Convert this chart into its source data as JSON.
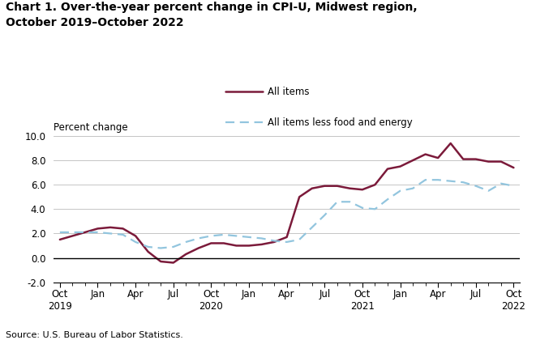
{
  "title": "Chart 1. Over-the-year percent change in CPI-U, Midwest region,\nOctober 2019–October 2022",
  "ylabel": "Percent change",
  "source": "Source: U.S. Bureau of Labor Statistics.",
  "ylim": [
    -2.0,
    10.0
  ],
  "yticks": [
    -2.0,
    0.0,
    2.0,
    4.0,
    6.0,
    8.0,
    10.0
  ],
  "x_labels": [
    "Oct\n2019",
    "Jan",
    "Apr",
    "Jul",
    "Oct\n2020",
    "Jan",
    "Apr",
    "Jul",
    "Oct\n2021",
    "Jan",
    "Apr",
    "Jul",
    "Oct\n2022"
  ],
  "x_positions": [
    0,
    3,
    6,
    9,
    12,
    15,
    18,
    21,
    24,
    27,
    30,
    33,
    36
  ],
  "all_items": [
    1.5,
    1.8,
    2.1,
    2.4,
    2.5,
    2.4,
    1.8,
    0.5,
    -0.3,
    -0.4,
    0.3,
    0.8,
    1.2,
    1.2,
    1.0,
    1.0,
    1.1,
    1.3,
    1.7,
    5.0,
    5.7,
    5.9,
    5.9,
    5.7,
    5.6,
    6.0,
    7.3,
    7.5,
    8.0,
    8.5,
    8.2,
    9.4,
    8.1,
    8.1,
    7.9,
    7.9,
    7.4
  ],
  "core_items": [
    2.1,
    2.1,
    2.1,
    2.1,
    2.0,
    1.9,
    1.3,
    0.9,
    0.8,
    0.9,
    1.3,
    1.6,
    1.8,
    1.9,
    1.8,
    1.7,
    1.6,
    1.4,
    1.3,
    1.5,
    2.5,
    3.5,
    4.6,
    4.6,
    4.1,
    4.0,
    4.8,
    5.5,
    5.7,
    6.4,
    6.4,
    6.3,
    6.2,
    5.9,
    5.5,
    6.1,
    5.9
  ],
  "all_items_color": "#7b1a3a",
  "core_items_color": "#92c5de",
  "all_items_label": "All items",
  "core_items_label": "All items less food and energy",
  "background_color": "#ffffff",
  "grid_color": "#bbbbbb"
}
